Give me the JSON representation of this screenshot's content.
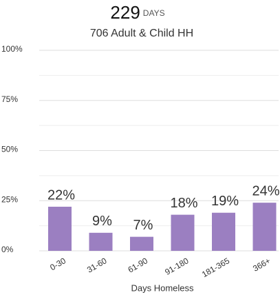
{
  "chart_data": {
    "type": "bar",
    "title": "229",
    "title_unit": "DAYS",
    "subtitle": "706 Adult & Child HH",
    "x_label": "Days Homeless",
    "categories": [
      "0-30",
      "31-60",
      "61-90",
      "91-180",
      "181-365",
      "366+"
    ],
    "values": [
      22,
      9,
      7,
      18,
      19,
      24
    ],
    "value_labels": [
      "22%",
      "9%",
      "7%",
      "18%",
      "19%",
      "24%"
    ],
    "color": "#9b7fc1",
    "ylim": [
      0,
      100
    ],
    "yticks": [
      {
        "value": 0,
        "label": "0%"
      },
      {
        "value": 25,
        "label": "25%"
      },
      {
        "value": 50,
        "label": "50%"
      },
      {
        "value": 75,
        "label": "75%"
      },
      {
        "value": 100,
        "label": "100%"
      }
    ],
    "minor_yticks": [
      12.5,
      37.5,
      62.5,
      87.5
    ],
    "grid": true
  }
}
